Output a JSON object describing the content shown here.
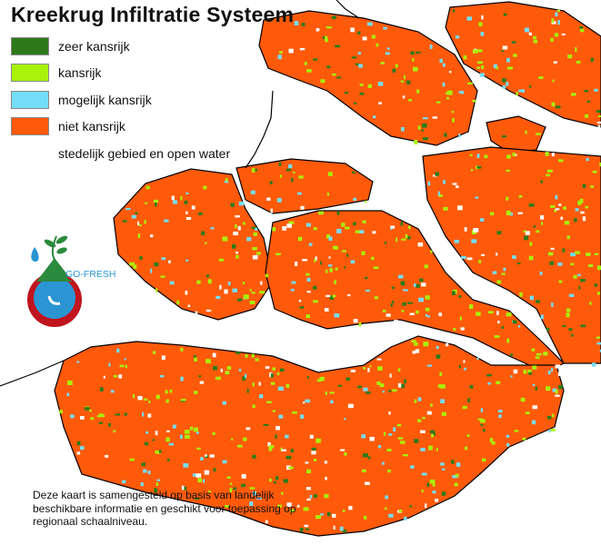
{
  "title": "Kreekrug Infiltratie Systeem",
  "legend": [
    {
      "label": "zeer kansrijk",
      "color": "#2e7a1a"
    },
    {
      "label": "kansrijk",
      "color": "#a9f20c"
    },
    {
      "label": "mogelijk kansrijk",
      "color": "#74ddf7"
    },
    {
      "label": "niet kansrijk",
      "color": "#ff5a0a"
    },
    {
      "label": "stedelijk gebied en open water",
      "color": "#ffffff"
    }
  ],
  "logo": {
    "text": "GO-FRESH"
  },
  "note": [
    "Deze kaart is samengesteld op basis van landelijk",
    "beschikbare informatie en geschikt voor toepassing op",
    "regionaal schaalniveau."
  ]
}
